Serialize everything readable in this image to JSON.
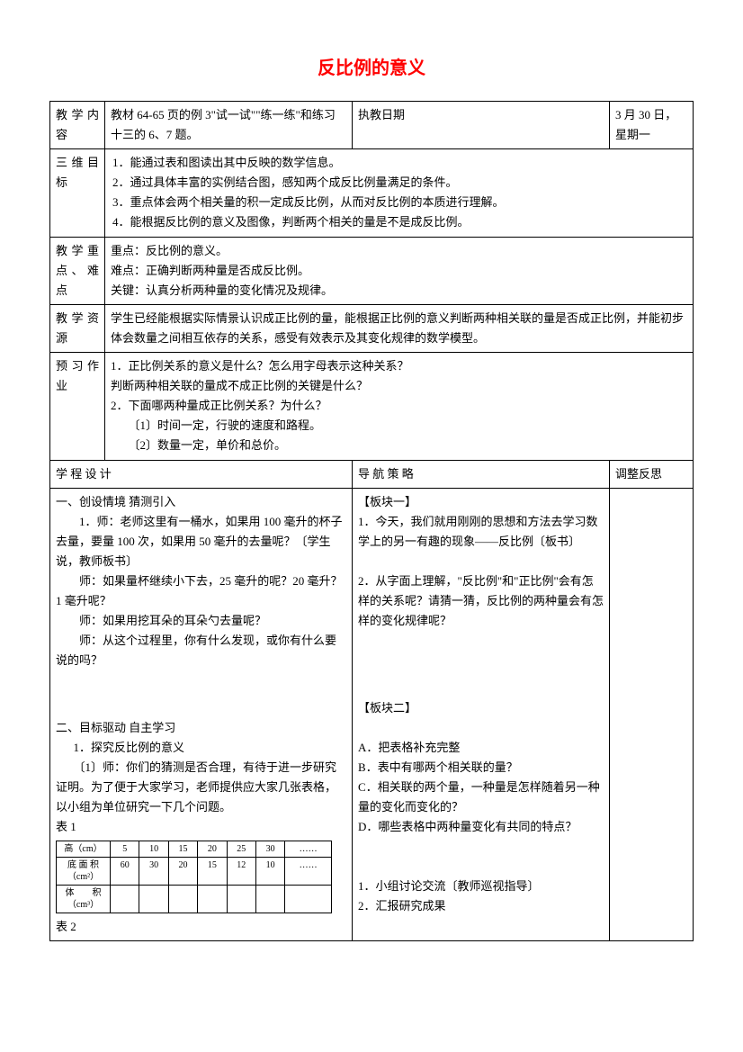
{
  "doc": {
    "title": "反比例的意义",
    "title_color": "#ff0000"
  },
  "meta": {
    "row1": {
      "label1": "教学内容",
      "value1": "教材 64-65 页的例 3\"试一试\"\"练一练\"和练习十三的 6、7 题。",
      "label2": "执教日期",
      "value2": "3 月 30 日，星期一"
    },
    "goals": {
      "label": "三维目标",
      "items": [
        "1．能通过表和图读出其中反映的数学信息。",
        "2．通过具体丰富的实例结合图，感知两个成反比例量满足的条件。",
        "3．重点体会两个相关量的积一定成反比例，从而对反比例的本质进行理解。",
        "4．能根据反比例的意义及图像，判断两个相关的量是不是成反比例。"
      ]
    },
    "keypoints": {
      "label": "教 学 重点、难点",
      "items": [
        "重点：反比例的意义。",
        "难点：正确判断两种量是否成反比例。",
        "关键：认真分析两种量的变化情况及规律。"
      ]
    },
    "resources": {
      "label": "教学资源",
      "value": "学生已经能根据实际情景认识成正比例的量，能根据正比例的意义判断两种相关联的量是否成正比例，并能初步体会数量之间相互依存的关系，感受有效表示及其变化规律的数学模型。"
    },
    "preview": {
      "label": "预习作业",
      "items": [
        "1．正比例关系的意义是什么？怎么用字母表示这种关系？",
        "判断两种相关联的量成不成正比例的关键是什么？",
        "2．下面哪两种量成正比例关系？为什么？",
        "〔1〕时间一定，行驶的速度和路程。",
        "〔2〕数量一定，单价和总价。"
      ]
    }
  },
  "columns": {
    "header": {
      "left": "学 程 设 计",
      "mid": "导 航 策 略",
      "right": "调整反思"
    }
  },
  "left_content": {
    "sec1_title": "一、创设情境 猜测引入",
    "sec1_p1": "1．师：老师这里有一桶水，如果用 100 毫升的杯子去量，要量 100 次，如果用 50 毫升的去量呢？〔学生说，教师板书〕",
    "sec1_p2": "师：如果量杯继续小下去，25 毫升的呢？20 毫升？1 毫升呢？",
    "sec1_p3": "师：如果用挖耳朵的耳朵勺去量呢？",
    "sec1_p4": "师：从这个过程里，你有什么发现，或你有什么要说的吗？",
    "sec2_title": "二、目标驱动 自主学习",
    "sec2_sub1": "1．探究反比例的意义",
    "sec2_p1": "〔1〕师：你们的猜测是否合理，有待于进一步研究证明。为了便于大家学习，老师提供应大家几张表格，以小组为单位研究一下几个问题。",
    "table1_label": "表 1",
    "table2_label": "表 2",
    "inner_table": {
      "headers": [
        "高（cm）",
        "5",
        "10",
        "15",
        "20",
        "25",
        "30",
        "……"
      ],
      "row1": [
        "底 面 积（cm²）",
        "60",
        "30",
        "20",
        "15",
        "12",
        "10",
        "……"
      ],
      "row2": [
        "体　　积（cm³）",
        "",
        "",
        "",
        "",
        "",
        "",
        ""
      ]
    }
  },
  "mid_content": {
    "block1_title": "【板块一】",
    "block1_p1": "1．今天，我们就用刚刚的思想和方法去学习数学上的另一有趣的现象——反比例〔板书〕",
    "block1_p2": "2．从字面上理解，\"反比例\"和\"正比例\"会有怎样的关系呢？请猜一猜，反比例的两种量会有怎样的变化规律呢？",
    "block2_title": "【板块二】",
    "block2_items": [
      "A．把表格补充完整",
      "B．表中有哪两个相关联的量？",
      "C．相关联的两个量，一种量是怎样随着另一种量的变化而变化的？",
      "D．哪些表格中两种量变化有共同的特点？"
    ],
    "block2_footer": [
      "1．小组讨论交流〔教师巡视指导〕",
      "2．汇报研究成果"
    ]
  }
}
